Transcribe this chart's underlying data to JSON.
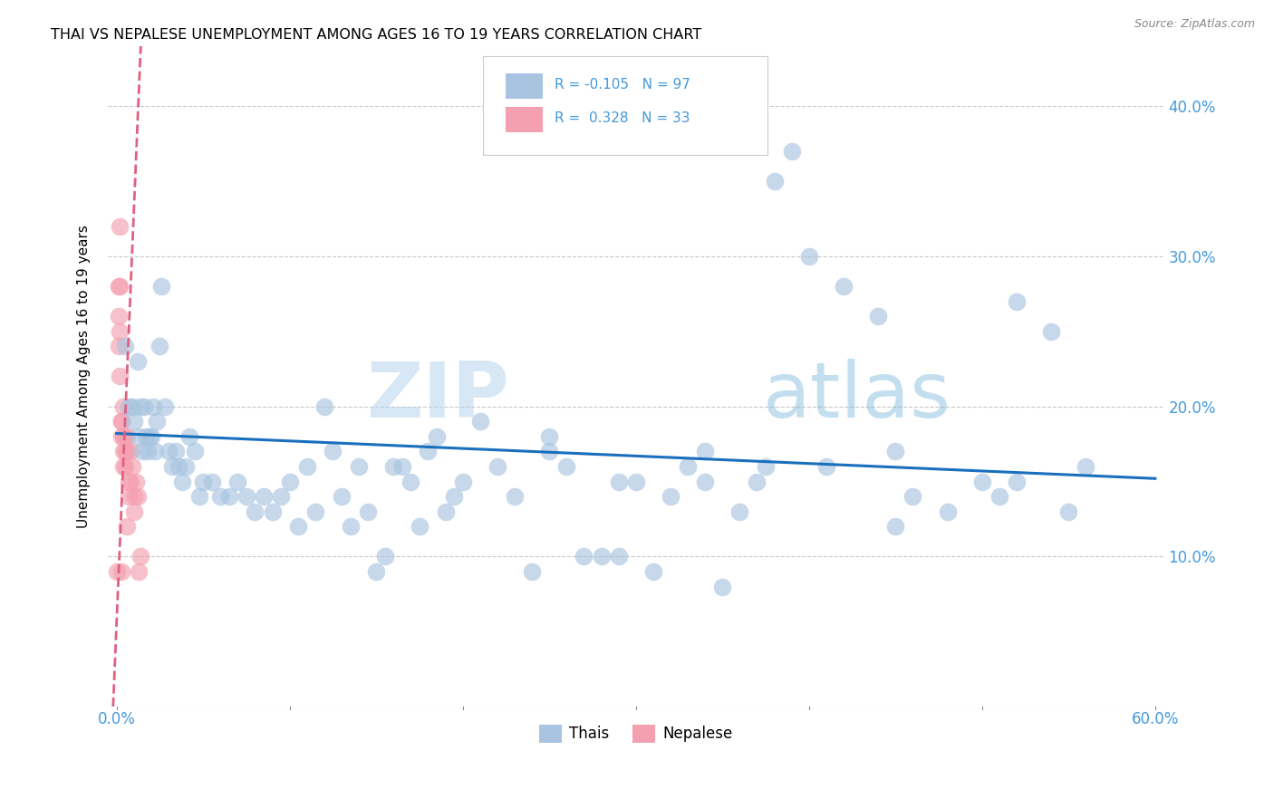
{
  "title": "THAI VS NEPALESE UNEMPLOYMENT AMONG AGES 16 TO 19 YEARS CORRELATION CHART",
  "source": "Source: ZipAtlas.com",
  "ylabel": "Unemployment Among Ages 16 to 19 years",
  "xlim": [
    -0.005,
    0.605
  ],
  "ylim": [
    0.0,
    0.44
  ],
  "x_ticks": [
    0.0,
    0.1,
    0.2,
    0.3,
    0.4,
    0.5,
    0.6
  ],
  "y_ticks": [
    0.0,
    0.1,
    0.2,
    0.3,
    0.4
  ],
  "y_tick_labels_right": [
    "",
    "10.0%",
    "20.0%",
    "30.0%",
    "40.0%"
  ],
  "legend_r_thai": "-0.105",
  "legend_n_thai": "97",
  "legend_r_nepalese": "0.328",
  "legend_n_nepalese": "33",
  "thai_color": "#a8c4e0",
  "nepalese_color": "#f4a0b0",
  "thai_line_color": "#1a6fbd",
  "nepalese_line_color": "#e06080",
  "watermark_zip": "ZIP",
  "watermark_atlas": "atlas",
  "thai_x": [
    0.005,
    0.007,
    0.009,
    0.01,
    0.012,
    0.013,
    0.014,
    0.015,
    0.016,
    0.017,
    0.018,
    0.019,
    0.02,
    0.021,
    0.022,
    0.023,
    0.025,
    0.026,
    0.028,
    0.03,
    0.032,
    0.034,
    0.036,
    0.038,
    0.04,
    0.042,
    0.045,
    0.048,
    0.05,
    0.055,
    0.06,
    0.065,
    0.07,
    0.075,
    0.08,
    0.085,
    0.09,
    0.095,
    0.1,
    0.105,
    0.11,
    0.115,
    0.12,
    0.125,
    0.13,
    0.135,
    0.14,
    0.145,
    0.15,
    0.155,
    0.16,
    0.165,
    0.17,
    0.175,
    0.18,
    0.185,
    0.19,
    0.195,
    0.2,
    0.21,
    0.22,
    0.23,
    0.24,
    0.25,
    0.26,
    0.27,
    0.28,
    0.29,
    0.3,
    0.31,
    0.32,
    0.33,
    0.34,
    0.36,
    0.37,
    0.38,
    0.39,
    0.4,
    0.42,
    0.44,
    0.35,
    0.45,
    0.46,
    0.48,
    0.5,
    0.51,
    0.52,
    0.54,
    0.55,
    0.56,
    0.52,
    0.45,
    0.41,
    0.375,
    0.34,
    0.29,
    0.25
  ],
  "thai_y": [
    0.24,
    0.2,
    0.2,
    0.19,
    0.23,
    0.18,
    0.2,
    0.17,
    0.2,
    0.18,
    0.17,
    0.18,
    0.18,
    0.2,
    0.17,
    0.19,
    0.24,
    0.28,
    0.2,
    0.17,
    0.16,
    0.17,
    0.16,
    0.15,
    0.16,
    0.18,
    0.17,
    0.14,
    0.15,
    0.15,
    0.14,
    0.14,
    0.15,
    0.14,
    0.13,
    0.14,
    0.13,
    0.14,
    0.15,
    0.12,
    0.16,
    0.13,
    0.2,
    0.17,
    0.14,
    0.12,
    0.16,
    0.13,
    0.09,
    0.1,
    0.16,
    0.16,
    0.15,
    0.12,
    0.17,
    0.18,
    0.13,
    0.14,
    0.15,
    0.19,
    0.16,
    0.14,
    0.09,
    0.18,
    0.16,
    0.1,
    0.1,
    0.1,
    0.15,
    0.09,
    0.14,
    0.16,
    0.17,
    0.13,
    0.15,
    0.35,
    0.37,
    0.3,
    0.28,
    0.26,
    0.08,
    0.12,
    0.14,
    0.13,
    0.15,
    0.14,
    0.15,
    0.25,
    0.13,
    0.16,
    0.27,
    0.17,
    0.16,
    0.16,
    0.15,
    0.15,
    0.17
  ],
  "nepalese_x": [
    0.0,
    0.001,
    0.001,
    0.001,
    0.002,
    0.002,
    0.002,
    0.002,
    0.003,
    0.003,
    0.003,
    0.003,
    0.004,
    0.004,
    0.004,
    0.004,
    0.005,
    0.005,
    0.005,
    0.006,
    0.006,
    0.006,
    0.007,
    0.007,
    0.008,
    0.008,
    0.009,
    0.01,
    0.01,
    0.011,
    0.012,
    0.013,
    0.014
  ],
  "nepalese_y": [
    0.09,
    0.28,
    0.26,
    0.24,
    0.32,
    0.28,
    0.25,
    0.22,
    0.19,
    0.19,
    0.18,
    0.09,
    0.2,
    0.18,
    0.17,
    0.16,
    0.18,
    0.17,
    0.16,
    0.18,
    0.17,
    0.12,
    0.15,
    0.14,
    0.17,
    0.15,
    0.16,
    0.14,
    0.13,
    0.15,
    0.14,
    0.09,
    0.1
  ],
  "nep_line_x_start": -0.002,
  "nep_line_x_end": 0.014,
  "nep_line_y_start": 0.0,
  "nep_line_y_end": 0.44,
  "thai_line_x_start": 0.0,
  "thai_line_x_end": 0.6,
  "thai_line_y_start": 0.182,
  "thai_line_y_end": 0.152
}
